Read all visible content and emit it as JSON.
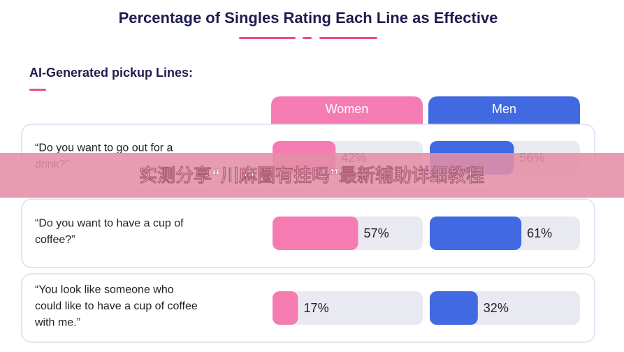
{
  "chart_data": {
    "type": "bar",
    "title": "Percentage of Singles Rating Each Line as Effective",
    "subtitle": "AI-Generated pickup Lines:",
    "categories": [
      "“Do you want to go out for a\ndrink?”",
      "“Do you want to have a cup of\ncoffee?”",
      "“You look like someone who\ncould like to have a cup of coffee\nwith me.”"
    ],
    "series": [
      {
        "name": "Women",
        "color": "#f47cb2",
        "values": [
          42,
          57,
          17
        ],
        "value_labels": [
          "42%",
          "57%",
          "17%"
        ]
      },
      {
        "name": "Men",
        "color": "#4169e1",
        "values": [
          56,
          61,
          32
        ],
        "value_labels": [
          "56%",
          "61%",
          "32%"
        ]
      }
    ],
    "xlim": [
      0,
      100
    ]
  },
  "overlay_text": "实测分享“川麻圈有挂吗”最新辅助详细教程"
}
